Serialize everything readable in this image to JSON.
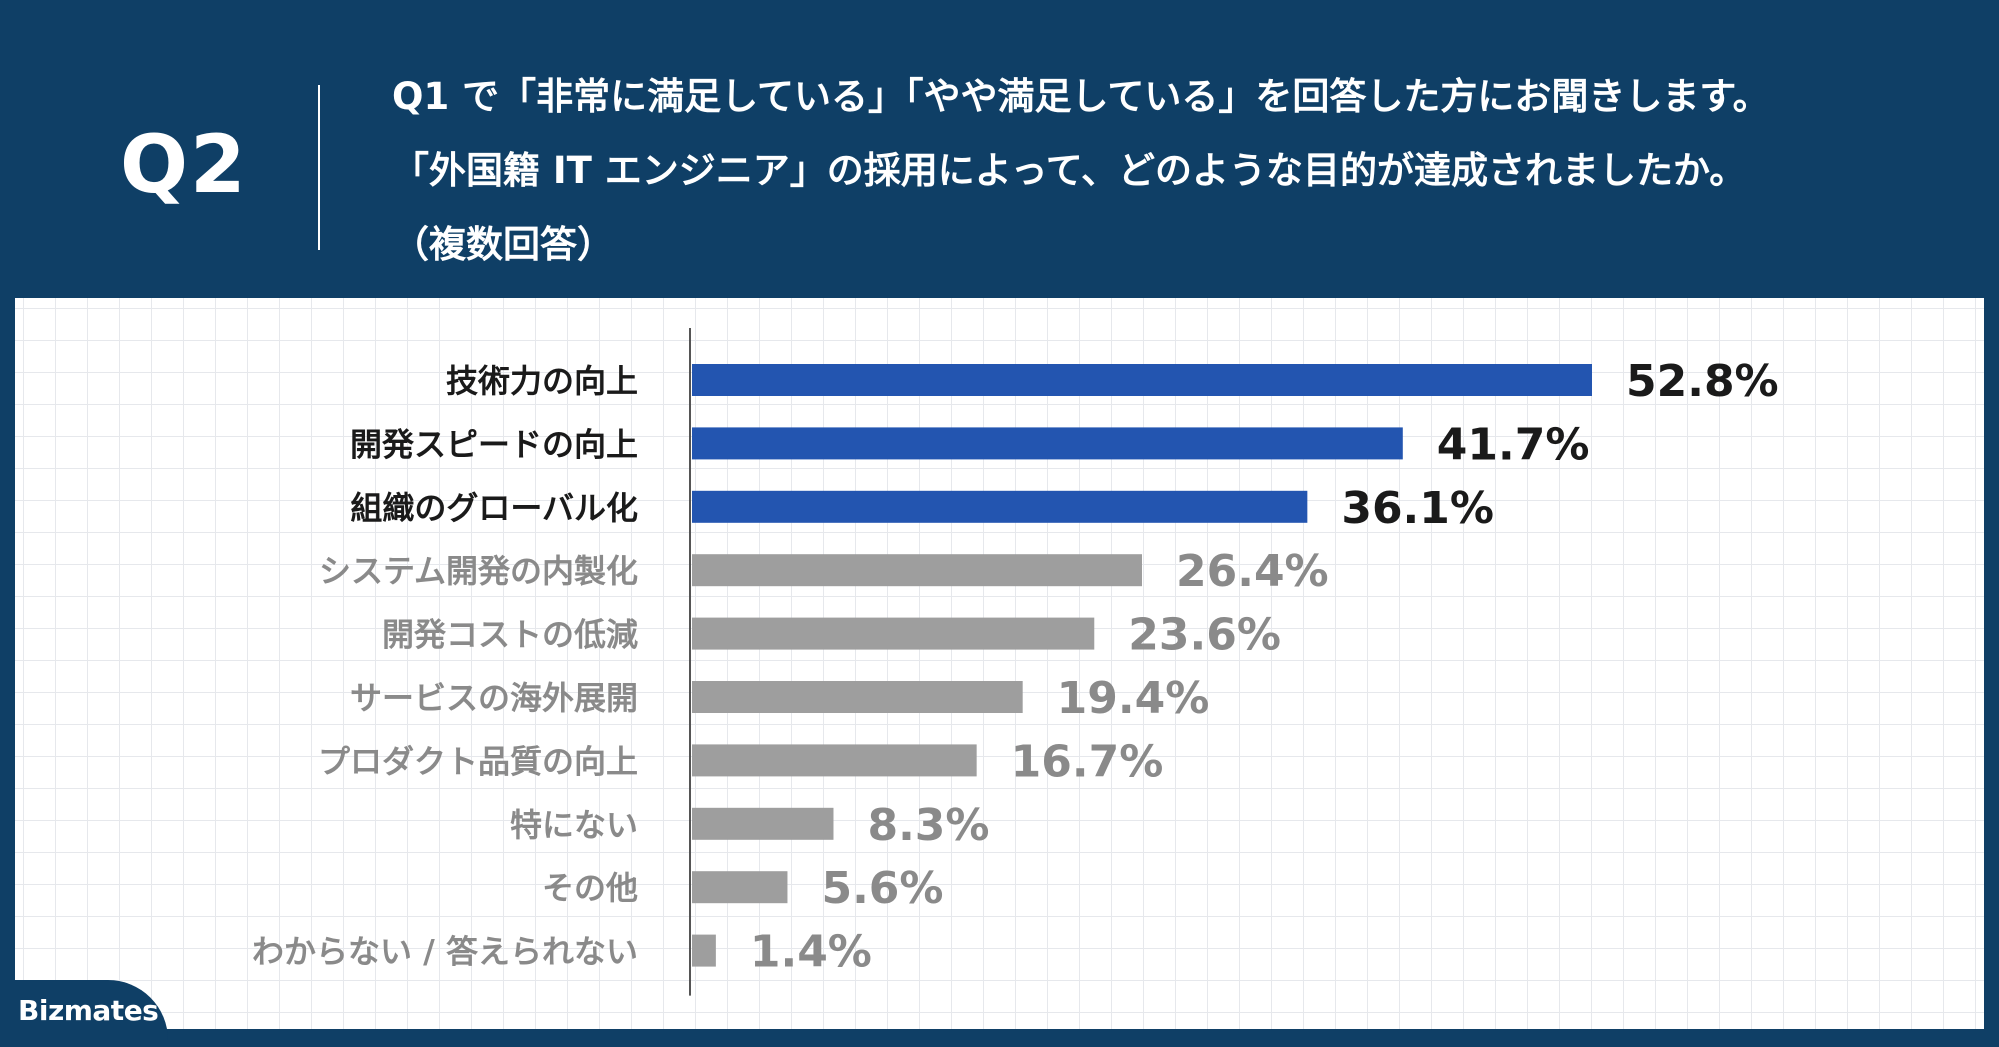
{
  "header": {
    "q_number": "Q2",
    "question_lines": [
      "Q1 で「非常に満足している」「やや満足している」を回答した方にお聞きします。",
      "「外国籍 IT エンジニア」の採用によって、どのような目的が達成されましたか。",
      "（複数回答）"
    ]
  },
  "brand": {
    "name": "Bizmates"
  },
  "colors": {
    "background": "#0f3f66",
    "highlight_bar": "#2355b0",
    "other_bar": "#9e9e9e",
    "highlight_text": "#1a1a1a",
    "other_text": "#8a8a8a"
  },
  "chart_data": {
    "type": "bar",
    "orientation": "horizontal",
    "categories": [
      "技術力の向上",
      "開発スピードの向上",
      "組織のグローバル化",
      "システム開発の内製化",
      "開発コストの低減",
      "サービスの海外展開",
      "プロダクト品質の向上",
      "特にない",
      "その他",
      "わからない / 答えられない"
    ],
    "values": [
      52.8,
      41.7,
      36.1,
      26.4,
      23.6,
      19.4,
      16.7,
      8.3,
      5.6,
      1.4
    ],
    "value_labels": [
      "52.8%",
      "41.7%",
      "36.1%",
      "26.4%",
      "23.6%",
      "19.4%",
      "16.7%",
      "8.3%",
      "5.6%",
      "1.4%"
    ],
    "highlighted": [
      true,
      true,
      true,
      false,
      false,
      false,
      false,
      false,
      false,
      false
    ],
    "unit": "%",
    "xlim": [
      0,
      60
    ],
    "grid": true,
    "legend": "none"
  }
}
